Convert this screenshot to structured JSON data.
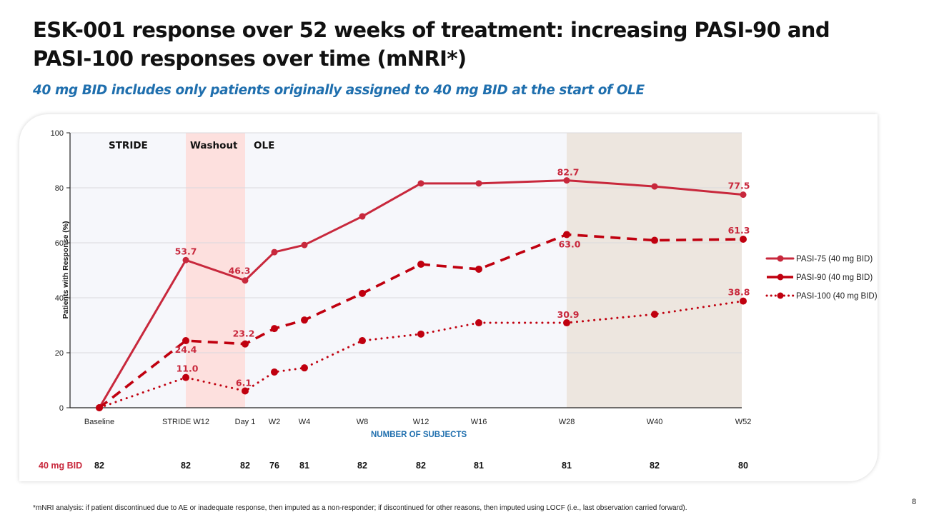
{
  "title": "ESK-001 response over 52 weeks of treatment: increasing PASI-90 and PASI-100 responses over time (mNRI*)",
  "subtitle": "40 mg BID includes only patients originally assigned to 40 mg BID at the start of OLE",
  "footnote": "*mNRI analysis: if patient discontinued due to AE or inadequate response, then imputed as a non-responder; if discontinued for other reasons, then imputed using LOCF (i.e., last observation carried forward).",
  "page_number": "8",
  "colors": {
    "accent_red": "#c8283c",
    "dark_red": "#c0000f",
    "blue": "#1f6fae",
    "washout": "#fde0de",
    "late_band": "#ede6df",
    "plot_bg": "#f6f7fb"
  },
  "subjects": {
    "label": "NUMBER OF SUBJECTS",
    "row_label": "40 mg BID",
    "counts": [
      "82",
      "82",
      "82",
      "76",
      "81",
      "82",
      "82",
      "81",
      "81",
      "82",
      "80"
    ]
  },
  "chart_data": {
    "type": "line",
    "title": "",
    "xlabel": "",
    "ylabel": "Patients with Response (%)",
    "ylim": [
      0,
      100
    ],
    "yticks": [
      "0",
      "20",
      "40",
      "60",
      "80",
      "100"
    ],
    "grid": true,
    "legend_position": "right",
    "x": [
      "Baseline",
      "STRIDE W12",
      "Day 1",
      "W2",
      "W4",
      "W8",
      "W12",
      "W16",
      "W28",
      "W40",
      "W52"
    ],
    "x_weeks": [
      -16,
      -4,
      0,
      2,
      4,
      8,
      12,
      16,
      28,
      40,
      52
    ],
    "regions": [
      {
        "label": "STRIDE",
        "from_index": 0,
        "to_index": 1,
        "shaded": false
      },
      {
        "label": "Washout",
        "from_index": 1,
        "to_index": 2,
        "shaded": true
      },
      {
        "label": "OLE",
        "from_index": 2,
        "to_index": 10,
        "shaded": false
      },
      {
        "label": "",
        "from_index": 8,
        "to_index": 10,
        "shaded": true
      }
    ],
    "series": [
      {
        "name": "PASI-75 (40 mg BID)",
        "style": "solid",
        "color": "#c8283c",
        "values": [
          0,
          53.7,
          46.3,
          56.6,
          59.2,
          69.6,
          81.6,
          81.6,
          82.7,
          80.5,
          77.5
        ],
        "labels": [
          null,
          "53.7",
          "46.3",
          null,
          null,
          null,
          null,
          null,
          "82.7",
          null,
          "77.5"
        ]
      },
      {
        "name": "PASI-90 (40 mg BID)",
        "style": "dashed",
        "color": "#c0000f",
        "values": [
          0,
          24.4,
          23.2,
          28.8,
          31.9,
          41.6,
          52.2,
          50.4,
          63.0,
          60.9,
          61.3
        ],
        "labels": [
          null,
          "24.4",
          "23.2",
          null,
          null,
          null,
          null,
          null,
          "63.0",
          null,
          "61.3"
        ]
      },
      {
        "name": "PASI-100 (40 mg BID)",
        "style": "dotted",
        "color": "#c0000f",
        "values": [
          0,
          11.0,
          6.1,
          13.0,
          14.5,
          24.4,
          26.8,
          30.9,
          30.9,
          34.0,
          38.8
        ],
        "labels": [
          null,
          "11.0",
          "6.1",
          null,
          null,
          null,
          null,
          null,
          "30.9",
          null,
          "38.8"
        ]
      }
    ]
  }
}
